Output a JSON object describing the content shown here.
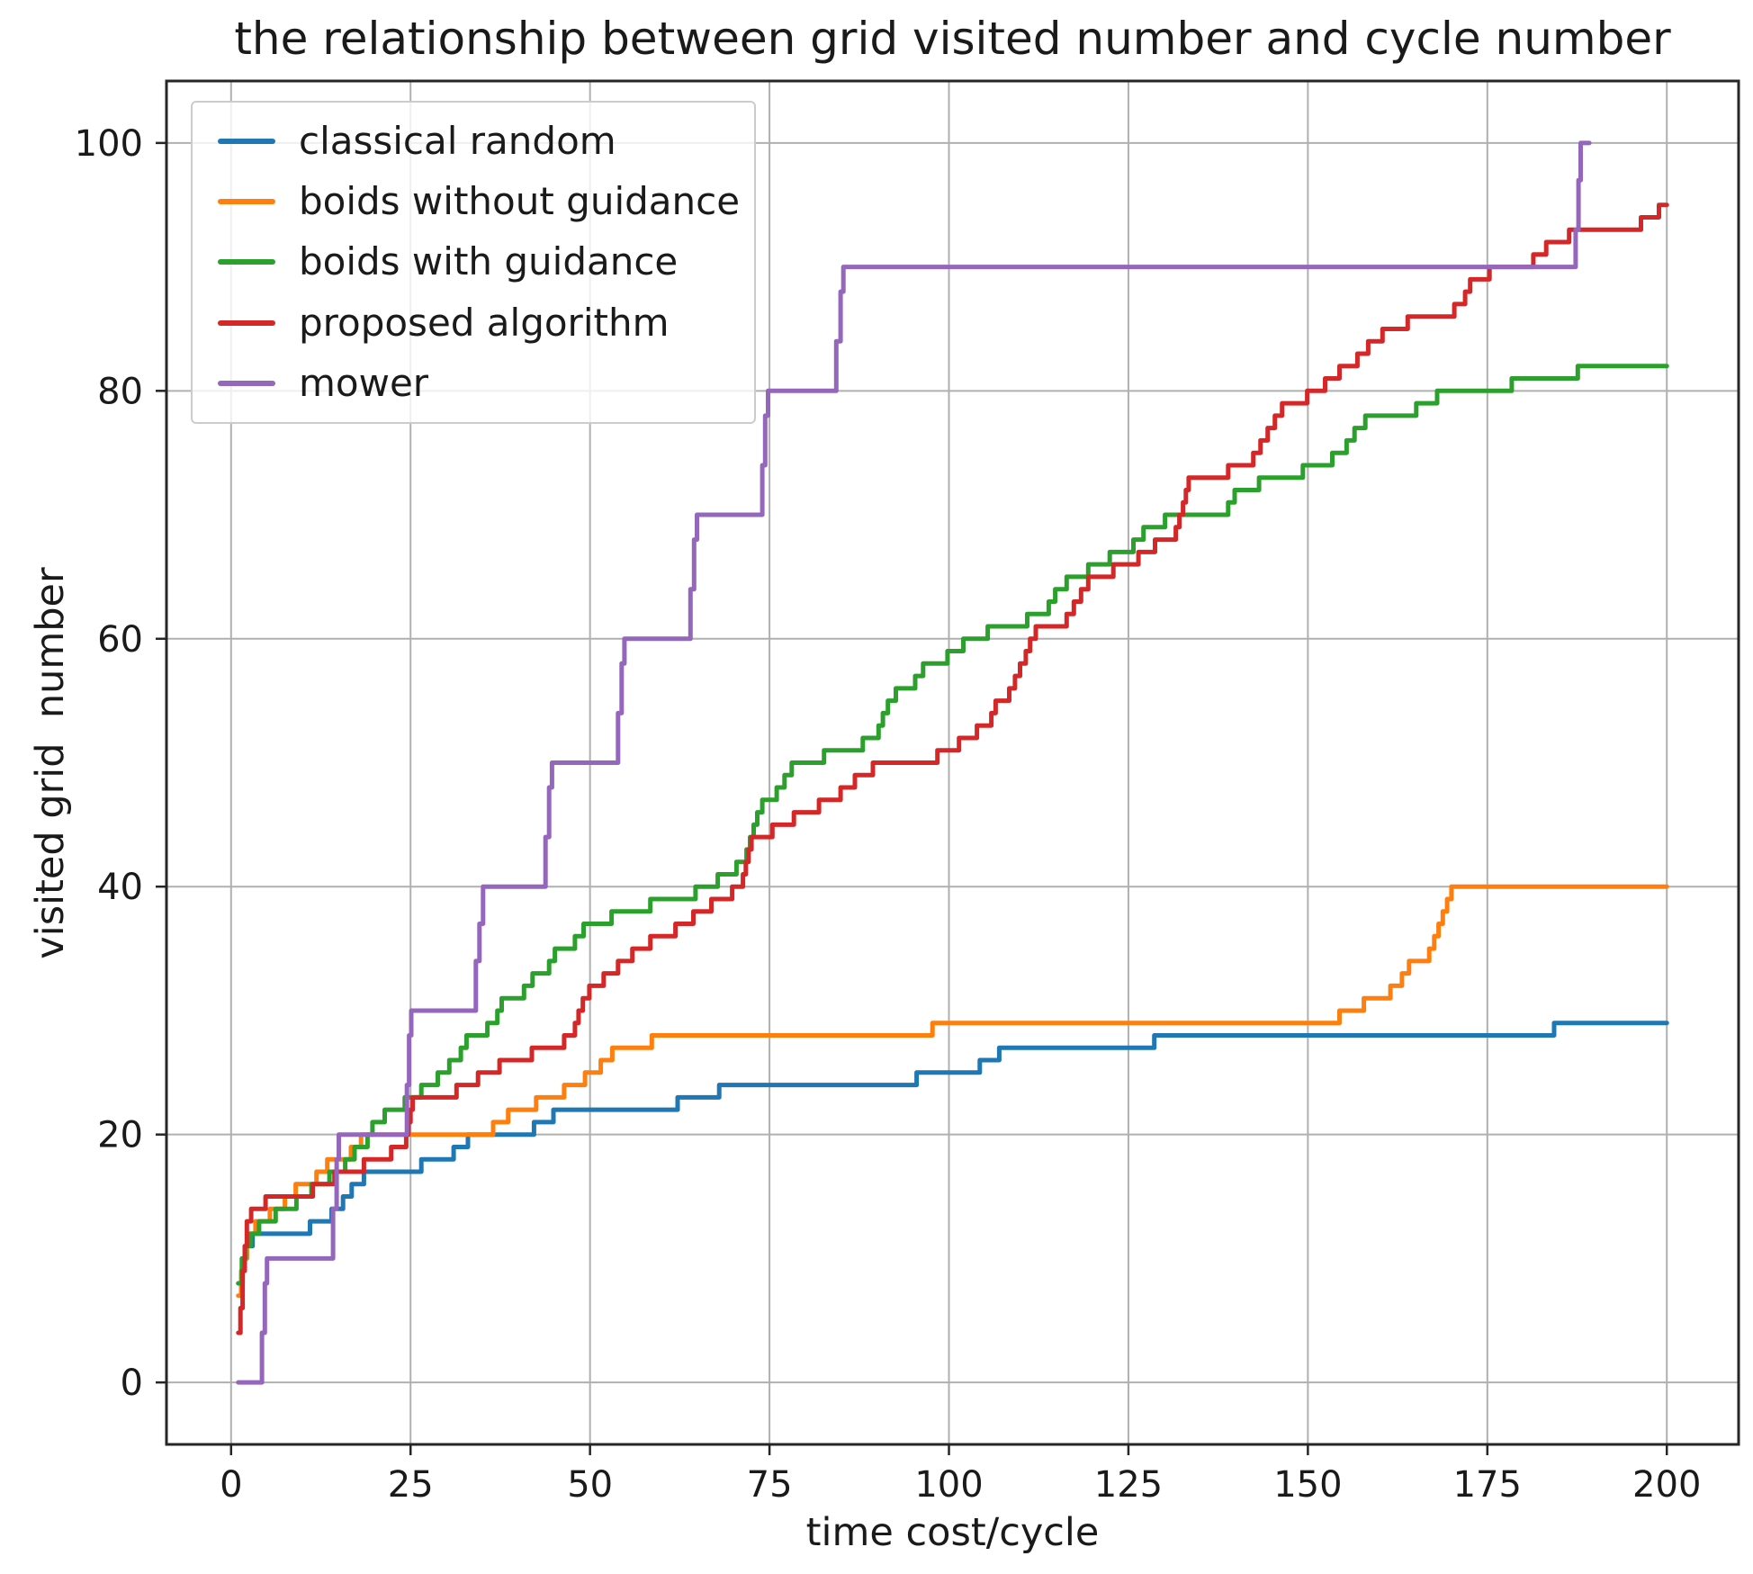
{
  "chart_data": {
    "type": "line",
    "step": "after",
    "title": "the relationship between grid visited number and cycle number",
    "xlabel": "time cost/cycle",
    "ylabel": "visited grid  number",
    "xlim": [
      -9,
      210
    ],
    "ylim": [
      -5,
      105
    ],
    "xticks": [
      0,
      25,
      50,
      75,
      100,
      125,
      150,
      175,
      200
    ],
    "yticks": [
      0,
      20,
      40,
      60,
      80,
      100
    ],
    "grid": true,
    "legend_position": "upper left",
    "grid_color": "#b0b0b0",
    "spine_color": "#262626",
    "tick_label_color": "#1a1a1a",
    "series": [
      {
        "name": "classical random",
        "color": "#1f77b4",
        "points": [
          [
            1,
            8
          ],
          [
            1.6,
            10
          ],
          [
            2.2,
            11
          ],
          [
            3,
            12
          ],
          [
            11,
            13
          ],
          [
            14,
            14
          ],
          [
            15.6,
            15
          ],
          [
            16.8,
            16
          ],
          [
            18.5,
            17
          ],
          [
            26.5,
            18
          ],
          [
            31,
            19
          ],
          [
            33,
            20
          ],
          [
            42.2,
            21
          ],
          [
            44.9,
            22
          ],
          [
            62.2,
            23
          ],
          [
            68,
            24
          ],
          [
            95.5,
            25
          ],
          [
            104.3,
            26
          ],
          [
            107,
            27
          ],
          [
            128.6,
            28
          ],
          [
            184.3,
            29
          ],
          [
            200,
            29
          ]
        ]
      },
      {
        "name": "boids without guidance",
        "color": "#ff7f0e",
        "points": [
          [
            1,
            7
          ],
          [
            1.4,
            9
          ],
          [
            1.8,
            10
          ],
          [
            2.2,
            11
          ],
          [
            2.6,
            12
          ],
          [
            3.4,
            13
          ],
          [
            5.4,
            14
          ],
          [
            7.5,
            15
          ],
          [
            9,
            16
          ],
          [
            11.9,
            17
          ],
          [
            13.4,
            18
          ],
          [
            16.7,
            19
          ],
          [
            18.1,
            20
          ],
          [
            36.5,
            21
          ],
          [
            38.6,
            22
          ],
          [
            42.5,
            23
          ],
          [
            46.4,
            24
          ],
          [
            49.3,
            25
          ],
          [
            51.5,
            26
          ],
          [
            53.1,
            27
          ],
          [
            58.6,
            28
          ],
          [
            97.7,
            29
          ],
          [
            154.4,
            30
          ],
          [
            157.8,
            31
          ],
          [
            161.5,
            32
          ],
          [
            163.1,
            33
          ],
          [
            164.1,
            34
          ],
          [
            166.9,
            35
          ],
          [
            167.6,
            36
          ],
          [
            168.2,
            37
          ],
          [
            168.8,
            38
          ],
          [
            169.4,
            39
          ],
          [
            170,
            40
          ],
          [
            200,
            40
          ]
        ]
      },
      {
        "name": "boids with guidance",
        "color": "#2ca02c",
        "points": [
          [
            1,
            8
          ],
          [
            1.5,
            10
          ],
          [
            2,
            11
          ],
          [
            2.7,
            12
          ],
          [
            3.9,
            13
          ],
          [
            6.2,
            14
          ],
          [
            9.1,
            15
          ],
          [
            11.2,
            16
          ],
          [
            13.7,
            17
          ],
          [
            15.9,
            18
          ],
          [
            17.2,
            19
          ],
          [
            19,
            20
          ],
          [
            19.7,
            21
          ],
          [
            21.4,
            22
          ],
          [
            24.2,
            23
          ],
          [
            26.5,
            24
          ],
          [
            28.8,
            25
          ],
          [
            30.4,
            26
          ],
          [
            32,
            27
          ],
          [
            32.8,
            28
          ],
          [
            35.7,
            29
          ],
          [
            37.1,
            30
          ],
          [
            37.7,
            31
          ],
          [
            40.8,
            32
          ],
          [
            42,
            33
          ],
          [
            44.3,
            34
          ],
          [
            45.1,
            35
          ],
          [
            47.9,
            36
          ],
          [
            49.1,
            37
          ],
          [
            53,
            38
          ],
          [
            58.4,
            39
          ],
          [
            64.7,
            40
          ],
          [
            67.8,
            41
          ],
          [
            70.4,
            42
          ],
          [
            71.8,
            43
          ],
          [
            72.3,
            44
          ],
          [
            72.8,
            45
          ],
          [
            73.3,
            46
          ],
          [
            74,
            47
          ],
          [
            76,
            48
          ],
          [
            77.1,
            49
          ],
          [
            78.1,
            50
          ],
          [
            82.6,
            51
          ],
          [
            88,
            52
          ],
          [
            90.2,
            53
          ],
          [
            90.8,
            54
          ],
          [
            91.5,
            55
          ],
          [
            92.6,
            56
          ],
          [
            95.3,
            57
          ],
          [
            96.4,
            58
          ],
          [
            99.8,
            59
          ],
          [
            102,
            60
          ],
          [
            105.4,
            61
          ],
          [
            110.9,
            62
          ],
          [
            113.9,
            63
          ],
          [
            114.8,
            64
          ],
          [
            116.4,
            65
          ],
          [
            119.4,
            66
          ],
          [
            122.4,
            67
          ],
          [
            125.7,
            68
          ],
          [
            127.1,
            69
          ],
          [
            130.1,
            70
          ],
          [
            138.9,
            71
          ],
          [
            139.8,
            72
          ],
          [
            143.2,
            73
          ],
          [
            149.3,
            74
          ],
          [
            153.4,
            75
          ],
          [
            155.4,
            76
          ],
          [
            156.5,
            77
          ],
          [
            158,
            78
          ],
          [
            165.1,
            79
          ],
          [
            168,
            80
          ],
          [
            178.4,
            81
          ],
          [
            187.6,
            82
          ],
          [
            200,
            82
          ]
        ]
      },
      {
        "name": "proposed algorithm",
        "color": "#d62728",
        "points": [
          [
            1,
            4
          ],
          [
            1.3,
            6
          ],
          [
            1.6,
            9
          ],
          [
            1.9,
            11
          ],
          [
            2.2,
            13
          ],
          [
            2.8,
            14
          ],
          [
            4.8,
            15
          ],
          [
            11.4,
            16
          ],
          [
            14.4,
            17
          ],
          [
            18.5,
            18
          ],
          [
            22.3,
            19
          ],
          [
            24.4,
            20
          ],
          [
            24.7,
            21
          ],
          [
            25,
            22
          ],
          [
            25.3,
            23
          ],
          [
            31.4,
            24
          ],
          [
            34.4,
            25
          ],
          [
            37.4,
            26
          ],
          [
            41.9,
            27
          ],
          [
            46.4,
            28
          ],
          [
            47.9,
            29
          ],
          [
            48.4,
            30
          ],
          [
            49,
            31
          ],
          [
            49.9,
            32
          ],
          [
            51.9,
            33
          ],
          [
            53.9,
            34
          ],
          [
            55.9,
            35
          ],
          [
            58.4,
            36
          ],
          [
            61.9,
            37
          ],
          [
            64.4,
            38
          ],
          [
            66.9,
            39
          ],
          [
            69.8,
            40
          ],
          [
            71.3,
            41
          ],
          [
            71.7,
            42
          ],
          [
            72.1,
            43
          ],
          [
            72.5,
            44
          ],
          [
            75.4,
            45
          ],
          [
            78.4,
            46
          ],
          [
            81.9,
            47
          ],
          [
            84.9,
            48
          ],
          [
            86.9,
            49
          ],
          [
            89.4,
            50
          ],
          [
            98.4,
            51
          ],
          [
            101.4,
            52
          ],
          [
            103.9,
            53
          ],
          [
            105.9,
            54
          ],
          [
            106.5,
            55
          ],
          [
            108.4,
            56
          ],
          [
            109.2,
            57
          ],
          [
            109.9,
            58
          ],
          [
            110.7,
            59
          ],
          [
            111.3,
            60
          ],
          [
            112.1,
            61
          ],
          [
            116.4,
            62
          ],
          [
            117.4,
            63
          ],
          [
            118.4,
            64
          ],
          [
            119.4,
            65
          ],
          [
            122.9,
            66
          ],
          [
            126.4,
            67
          ],
          [
            128.7,
            68
          ],
          [
            131.6,
            69
          ],
          [
            132.1,
            70
          ],
          [
            132.6,
            71
          ],
          [
            133,
            72
          ],
          [
            133.4,
            73
          ],
          [
            138.9,
            74
          ],
          [
            142.4,
            75
          ],
          [
            143.4,
            76
          ],
          [
            144.4,
            77
          ],
          [
            145.4,
            78
          ],
          [
            146.4,
            79
          ],
          [
            149.9,
            80
          ],
          [
            152.4,
            81
          ],
          [
            154.4,
            82
          ],
          [
            156.9,
            83
          ],
          [
            158.4,
            84
          ],
          [
            160.4,
            85
          ],
          [
            163.9,
            86
          ],
          [
            170.4,
            87
          ],
          [
            171.9,
            88
          ],
          [
            172.6,
            89
          ],
          [
            175.3,
            90
          ],
          [
            181.4,
            91
          ],
          [
            183.2,
            92
          ],
          [
            186.4,
            93
          ],
          [
            196.4,
            94
          ],
          [
            198.9,
            95
          ],
          [
            200,
            95
          ]
        ]
      },
      {
        "name": "mower",
        "color": "#9467bd",
        "points": [
          [
            1,
            0
          ],
          [
            4.3,
            4
          ],
          [
            4.7,
            8
          ],
          [
            5,
            10
          ],
          [
            14.2,
            14
          ],
          [
            14.7,
            18
          ],
          [
            15,
            20
          ],
          [
            24.5,
            24
          ],
          [
            24.8,
            28
          ],
          [
            25.1,
            30
          ],
          [
            34.1,
            34
          ],
          [
            34.6,
            37
          ],
          [
            35.1,
            40
          ],
          [
            43.8,
            44
          ],
          [
            44.3,
            48
          ],
          [
            44.7,
            50
          ],
          [
            53.9,
            54
          ],
          [
            54.4,
            58
          ],
          [
            54.8,
            60
          ],
          [
            64,
            64
          ],
          [
            64.5,
            68
          ],
          [
            64.9,
            70
          ],
          [
            74,
            74
          ],
          [
            74.4,
            78
          ],
          [
            74.8,
            80
          ],
          [
            84.3,
            84
          ],
          [
            84.9,
            88
          ],
          [
            85.3,
            90
          ],
          [
            187.3,
            93
          ],
          [
            187.7,
            97
          ],
          [
            188,
            100
          ],
          [
            189.2,
            100
          ]
        ]
      }
    ]
  },
  "legend": {
    "items": [
      {
        "label": "classical random",
        "color": "#1f77b4"
      },
      {
        "label": "boids without guidance",
        "color": "#ff7f0e"
      },
      {
        "label": "boids with guidance",
        "color": "#2ca02c"
      },
      {
        "label": "proposed algorithm",
        "color": "#d62728"
      },
      {
        "label": "mower",
        "color": "#9467bd"
      }
    ]
  }
}
